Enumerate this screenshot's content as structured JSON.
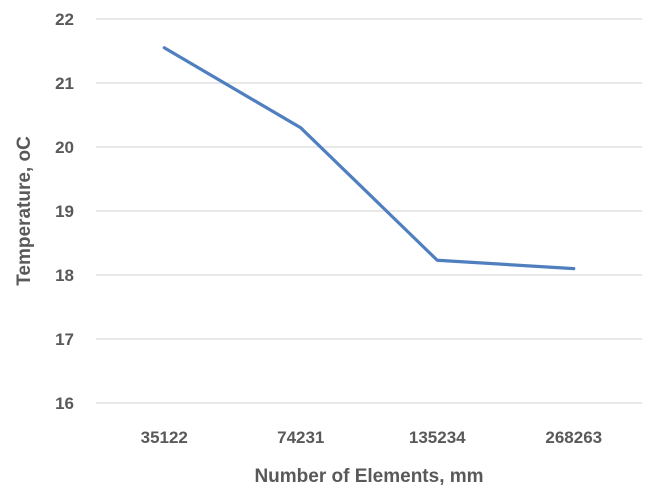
{
  "chart_data": {
    "type": "line",
    "title": "",
    "xlabel": "Number of Elements, mm",
    "ylabel": "Temperature, oC",
    "categories": [
      "35122",
      "74231",
      "135234",
      "268263"
    ],
    "series": [
      {
        "values": [
          21.55,
          20.3,
          18.23,
          18.1
        ],
        "color": "#4f7fbf"
      }
    ],
    "ylim": [
      16,
      22
    ],
    "yticks": [
      "16",
      "17",
      "18",
      "19",
      "20",
      "21",
      "22"
    ],
    "grid": true,
    "legend": "none"
  }
}
